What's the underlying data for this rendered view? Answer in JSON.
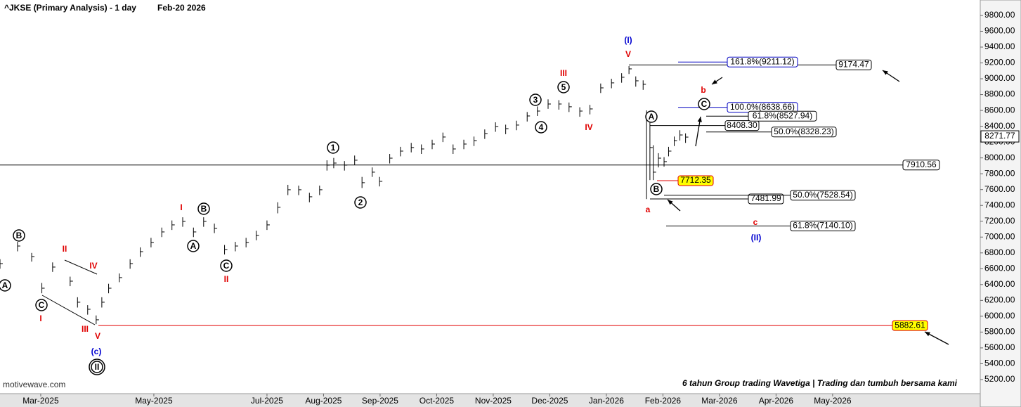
{
  "chart_data": {
    "type": "ohlc",
    "title": "^JKSE (Primary Analysis) - 1 day",
    "subtitle": "Feb-20 2026",
    "watermark": "motivewave.com",
    "footer": "6 tahun Group trading Wavetiga | Trading dan tumbuh bersama kami",
    "color": "#000000",
    "xlim": [
      2.28,
      19.61
    ],
    "xticks": [
      {
        "value": 3,
        "label": "Mar-2025"
      },
      {
        "value": 5,
        "label": "May-2025"
      },
      {
        "value": 7,
        "label": "Jul-2025"
      },
      {
        "value": 8,
        "label": "Aug-2025"
      },
      {
        "value": 9,
        "label": "Sep-2025"
      },
      {
        "value": 10,
        "label": "Oct-2025"
      },
      {
        "value": 11,
        "label": "Nov-2025"
      },
      {
        "value": 12,
        "label": "Dec-2025"
      },
      {
        "value": 13,
        "label": "Jan-2026"
      },
      {
        "value": 14,
        "label": "Feb-2026"
      },
      {
        "value": 15,
        "label": "Mar-2026"
      },
      {
        "value": 16,
        "label": "Apr-2026"
      },
      {
        "value": 17,
        "label": "May-2026"
      }
    ],
    "ylim": [
      5022,
      9995
    ],
    "yticks": [
      {
        "value": 5200,
        "label": "5200.00"
      },
      {
        "value": 5400,
        "label": "5400.00"
      },
      {
        "value": 5600,
        "label": "5600.00"
      },
      {
        "value": 5800,
        "label": "5800.00"
      },
      {
        "value": 6000,
        "label": "6000.00"
      },
      {
        "value": 6200,
        "label": "6200.00"
      },
      {
        "value": 6400,
        "label": "6400.00"
      },
      {
        "value": 6600,
        "label": "6600.00"
      },
      {
        "value": 6800,
        "label": "6800.00"
      },
      {
        "value": 7000,
        "label": "7000.00"
      },
      {
        "value": 7200,
        "label": "7200.00"
      },
      {
        "value": 7400,
        "label": "7400.00"
      },
      {
        "value": 7600,
        "label": "7600.00"
      },
      {
        "value": 7800,
        "label": "7800.00"
      },
      {
        "value": 8000,
        "label": "8000.00"
      },
      {
        "value": 8200,
        "label": "8200.00"
      },
      {
        "value": 8400,
        "label": "8400.00"
      },
      {
        "value": 8600,
        "label": "8600.00"
      },
      {
        "value": 8800,
        "label": "8800.00"
      },
      {
        "value": 9000,
        "label": "9000.00"
      },
      {
        "value": 9200,
        "label": "9200.00"
      },
      {
        "value": 9400,
        "label": "9400.00"
      },
      {
        "value": 9600,
        "label": "9600.00"
      },
      {
        "value": 9800,
        "label": "9800.00"
      }
    ],
    "x": [
      2.28,
      2.59,
      2.84,
      3.02,
      3.21,
      3.52,
      3.65,
      3.83,
      3.98,
      4.08,
      4.2,
      4.39,
      4.58,
      4.76,
      4.95,
      5.14,
      5.32,
      5.51,
      5.7,
      5.88,
      6.07,
      6.25,
      6.44,
      6.63,
      6.81,
      7.0,
      7.19,
      7.37,
      7.56,
      7.75,
      7.93,
      8.06,
      8.18,
      8.37,
      8.55,
      8.68,
      8.86,
      8.99,
      9.17,
      9.36,
      9.55,
      9.73,
      9.92,
      10.11,
      10.29,
      10.48,
      10.66,
      10.85,
      11.04,
      11.22,
      11.41,
      11.6,
      11.78,
      11.97,
      12.16,
      12.34,
      12.53,
      12.71,
      12.9,
      13.09,
      13.27,
      13.4,
      13.52,
      13.65,
      13.71,
      13.77,
      13.83,
      13.92,
      14.02,
      14.1,
      14.2,
      14.3,
      14.4
    ],
    "high": [
      6720,
      6940,
      6800,
      6420,
      6680,
      6500,
      6240,
      6140,
      6010,
      6240,
      6410,
      6540,
      6720,
      6870,
      6990,
      7120,
      7210,
      7250,
      7120,
      7250,
      7170,
      6900,
      6940,
      6990,
      7080,
      7210,
      7440,
      7660,
      7650,
      7560,
      7650,
      7970,
      8000,
      7960,
      8030,
      7760,
      7880,
      7760,
      8050,
      8140,
      8190,
      8170,
      8230,
      8320,
      8170,
      8230,
      8270,
      8360,
      8450,
      8420,
      8470,
      8580,
      8650,
      8740,
      8730,
      8700,
      8640,
      8670,
      8940,
      9000,
      9070,
      9160,
      9030,
      8980,
      8600,
      8480,
      8160,
      8060,
      8010,
      8140,
      8270,
      8350,
      8310
    ],
    "low": [
      6600,
      6820,
      6690,
      6290,
      6560,
      6380,
      6110,
      6020,
      5900,
      6110,
      6290,
      6430,
      6600,
      6750,
      6870,
      7000,
      7090,
      7130,
      7000,
      7130,
      7050,
      6780,
      6820,
      6870,
      6960,
      7090,
      7300,
      7530,
      7530,
      7440,
      7530,
      7840,
      7870,
      7840,
      7910,
      7620,
      7760,
      7640,
      7930,
      8020,
      8070,
      8050,
      8110,
      8200,
      8050,
      8110,
      8150,
      8240,
      8330,
      8300,
      8350,
      8460,
      8530,
      8620,
      8610,
      8580,
      8520,
      8550,
      8820,
      8880,
      8950,
      9060,
      8900,
      8860,
      7480,
      7720,
      7720,
      7880,
      7890,
      8020,
      8150,
      8220,
      8190
    ],
    "close": [
      6665,
      6887,
      6754,
      6354,
      6621,
      6443,
      6177,
      6088,
      5955,
      6177,
      6354,
      6488,
      6665,
      6816,
      6932,
      7065,
      7154,
      7198,
      7065,
      7198,
      7110,
      6843,
      6887,
      6932,
      7021,
      7154,
      7376,
      7598,
      7598,
      7509,
      7598,
      7909,
      7935,
      7909,
      7971,
      7687,
      7820,
      7704,
      7997,
      8086,
      8131,
      8113,
      8175,
      8264,
      8113,
      8175,
      8219,
      8308,
      8397,
      8370,
      8415,
      8530,
      8592,
      8681,
      8681,
      8646,
      8592,
      8619,
      8885,
      8948,
      9019,
      9125,
      8974,
      8930,
      8486,
      8131,
      7820,
      7997,
      7953,
      8086,
      8219,
      8290,
      8263
    ],
    "last_price": 8271.77,
    "levels": [
      {
        "value": 7910.56,
        "color": "#000000",
        "fill": "#ffffff"
      },
      {
        "value": 5882.61,
        "color": "#e00000",
        "fill": "#ffff00"
      },
      {
        "value": 9174.47,
        "color": "#000000",
        "fill": "#ffffff"
      },
      {
        "value": 7712.35,
        "color": "#e00000",
        "fill": "#ffff00"
      },
      {
        "value": 7481.99,
        "color": "#000000",
        "fill": "#ffffff"
      },
      {
        "value": 8408.3,
        "label": "8408.30",
        "color": "#000000",
        "fill": "#ffffff"
      },
      {
        "value": 9211.12,
        "label": "161.8%(9211.12)",
        "color": "#0000c0",
        "fill": "#ffffff"
      },
      {
        "value": 8638.66,
        "label": "100.0%(8638.66)",
        "color": "#0000c0",
        "fill": "#ffffff"
      },
      {
        "value": 8527.94,
        "label": "61.8%(8527.94)",
        "color": "#000000",
        "fill": "#ffffff"
      },
      {
        "value": 8328.23,
        "label": "50.0%(8328.23)",
        "color": "#000000",
        "fill": "#ffffff"
      },
      {
        "value": 7528.54,
        "label": "50.0%(7528.54)",
        "color": "#000000",
        "fill": "#ffffff"
      },
      {
        "value": 7140.1,
        "label": "61.8%(7140.10)",
        "color": "#000000",
        "fill": "#ffffff"
      }
    ],
    "annotations": [
      "A",
      "B",
      "C",
      "A",
      "B",
      "C",
      "1",
      "2",
      "3",
      "4",
      "5",
      "A",
      "B",
      "C",
      "II",
      "I",
      "II",
      "III",
      "IV",
      "V",
      "I",
      "II",
      "III",
      "IV",
      "V",
      "a",
      "b",
      "c",
      "(c)",
      "(I)",
      "(II)"
    ]
  }
}
